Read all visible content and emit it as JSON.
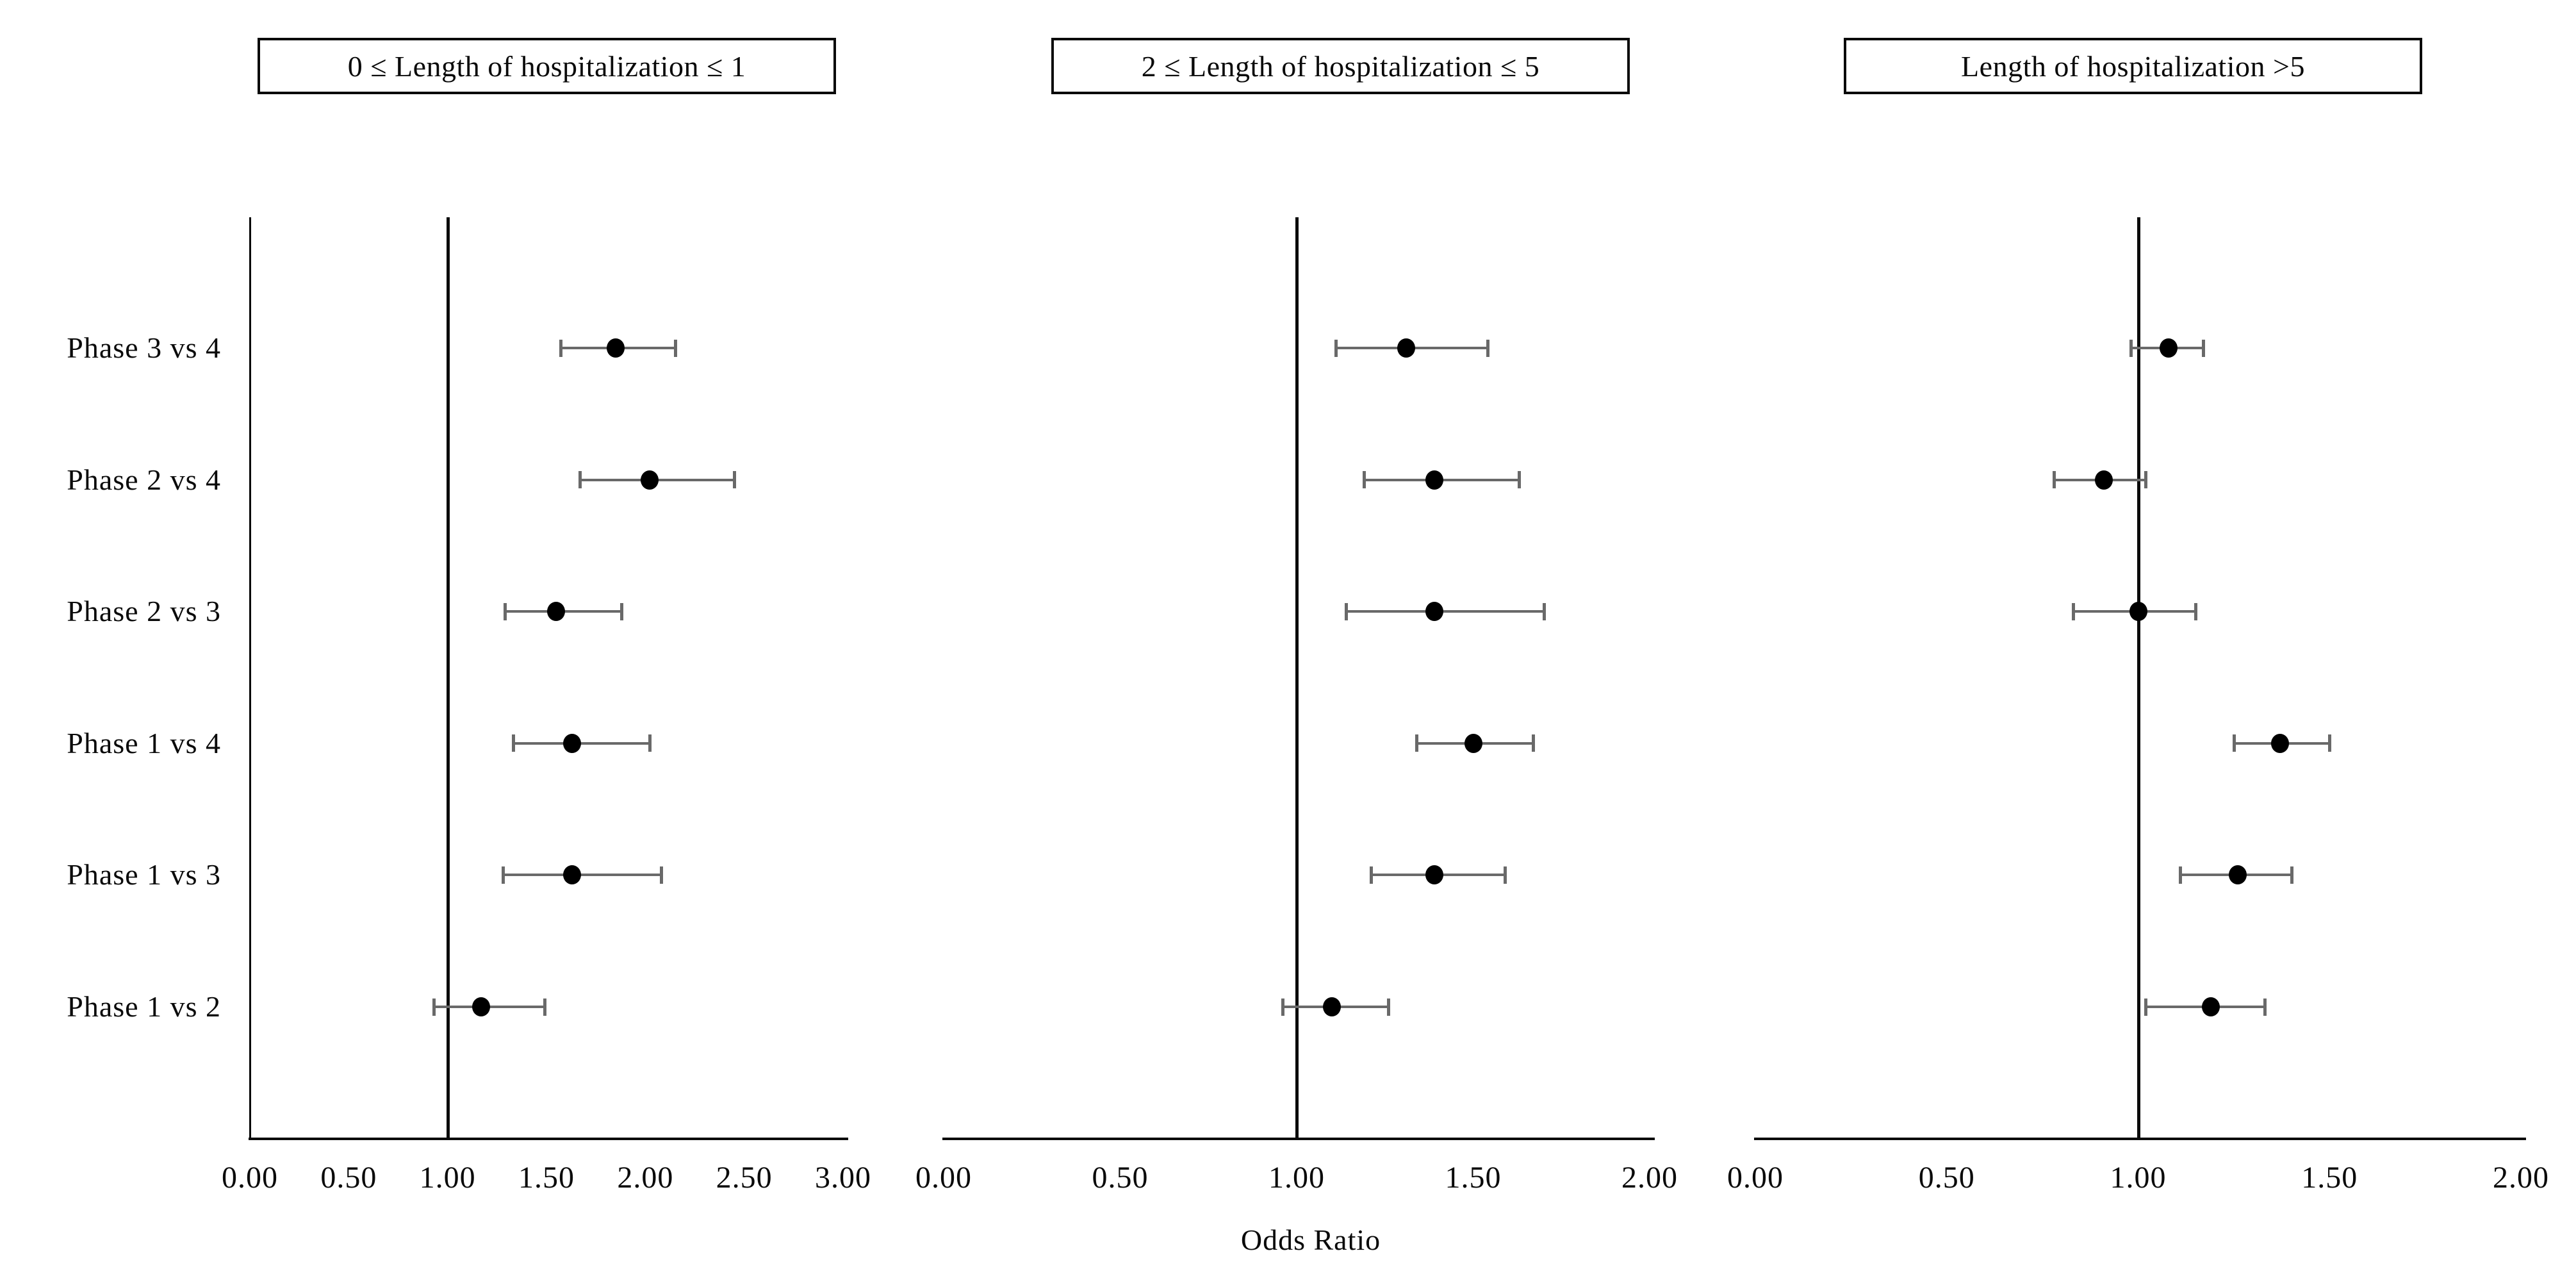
{
  "chart_data": {
    "type": "scatter",
    "subtype": "forest-plot",
    "xlabel": "Odds Ratio",
    "grid": false,
    "legend": "none",
    "marker_color": "#000000",
    "error_bar_color": "#696969",
    "axis_color": "#0a0a0a",
    "categories": [
      "Phase 3 vs 4",
      "Phase 2 vs 4",
      "Phase 2 vs 3",
      "Phase 1 vs 4",
      "Phase 1 vs 3",
      "Phase 1 vs 2"
    ],
    "panels": [
      {
        "title": "0 ≤ Length of hospitalization ≤ 1",
        "xlim": [
          0,
          3
        ],
        "xticks": [
          0.0,
          0.5,
          1.0,
          1.5,
          2.0,
          2.5,
          3.0
        ],
        "tick_labels": [
          "0.00",
          "0.50",
          "1.00",
          "1.50",
          "2.00",
          "2.50",
          "3.00"
        ],
        "reference_line": 1.0,
        "points": [
          {
            "label": "Phase 3 vs 4",
            "or": 1.85,
            "ci": [
              1.57,
              2.15
            ]
          },
          {
            "label": "Phase 2 vs 4",
            "or": 2.02,
            "ci": [
              1.67,
              2.45
            ]
          },
          {
            "label": "Phase 2 vs 3",
            "or": 1.55,
            "ci": [
              1.29,
              1.88
            ]
          },
          {
            "label": "Phase 1 vs 4",
            "or": 1.63,
            "ci": [
              1.33,
              2.02
            ]
          },
          {
            "label": "Phase 1 vs 3",
            "or": 1.63,
            "ci": [
              1.28,
              2.08
            ]
          },
          {
            "label": "Phase 1 vs 2",
            "or": 1.17,
            "ci": [
              0.93,
              1.49
            ]
          }
        ]
      },
      {
        "title": "2 ≤ Length of hospitalization ≤ 5",
        "xlim": [
          0,
          2
        ],
        "xticks": [
          0.0,
          0.5,
          1.0,
          1.5,
          2.0
        ],
        "tick_labels": [
          "0.00",
          "0.50",
          "1.00",
          "1.50",
          "2.00"
        ],
        "reference_line": 1.0,
        "points": [
          {
            "label": "Phase 3 vs 4",
            "or": 1.31,
            "ci": [
              1.11,
              1.54
            ]
          },
          {
            "label": "Phase 2 vs 4",
            "or": 1.39,
            "ci": [
              1.19,
              1.63
            ]
          },
          {
            "label": "Phase 2 vs 3",
            "or": 1.39,
            "ci": [
              1.14,
              1.7
            ]
          },
          {
            "label": "Phase 1 vs 4",
            "or": 1.5,
            "ci": [
              1.34,
              1.67
            ]
          },
          {
            "label": "Phase 1 vs 3",
            "or": 1.39,
            "ci": [
              1.21,
              1.59
            ]
          },
          {
            "label": "Phase 1 vs 2",
            "or": 1.1,
            "ci": [
              0.96,
              1.26
            ]
          }
        ]
      },
      {
        "title": "Length of hospitalization >5",
        "xlim": [
          0,
          2
        ],
        "xticks": [
          0.0,
          0.5,
          1.0,
          1.5,
          2.0
        ],
        "tick_labels": [
          "0.00",
          "0.50",
          "1.00",
          "1.50",
          "2.00"
        ],
        "reference_line": 1.0,
        "points": [
          {
            "label": "Phase 3 vs 4",
            "or": 1.08,
            "ci": [
              0.98,
              1.17
            ]
          },
          {
            "label": "Phase 2 vs 4",
            "or": 0.91,
            "ci": [
              0.78,
              1.02
            ]
          },
          {
            "label": "Phase 2 vs 3",
            "or": 1.0,
            "ci": [
              0.83,
              1.15
            ]
          },
          {
            "label": "Phase 1 vs 4",
            "or": 1.37,
            "ci": [
              1.25,
              1.5
            ]
          },
          {
            "label": "Phase 1 vs 3",
            "or": 1.26,
            "ci": [
              1.11,
              1.4
            ]
          },
          {
            "label": "Phase 1 vs 2",
            "or": 1.19,
            "ci": [
              1.02,
              1.33
            ]
          }
        ]
      }
    ]
  }
}
